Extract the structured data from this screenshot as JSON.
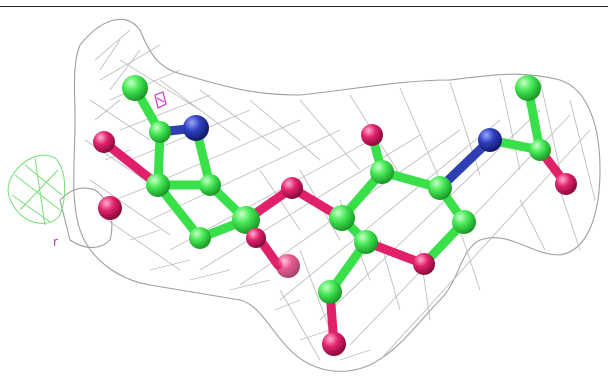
{
  "colors": {
    "carbon": "#39e04a",
    "oxygen": "#e0206a",
    "nitrogen": "#2e3fb4",
    "mesh": "#9a9a9a",
    "extra_density": "#66dd66",
    "label": "#cc33cc"
  },
  "annotations": {
    "small_label": "r"
  }
}
